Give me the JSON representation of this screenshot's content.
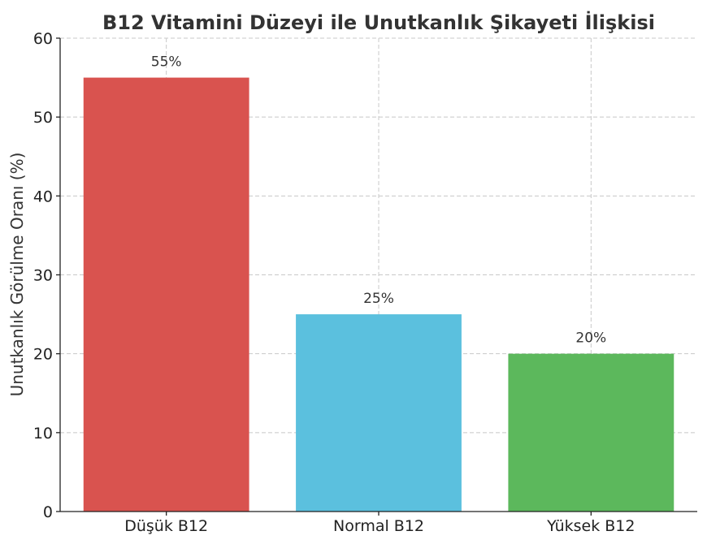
{
  "chart_data": {
    "type": "bar",
    "title": "B12 Vitamini Düzeyi ile Unutkanlık Şikayeti İlişkisi",
    "xlabel": "",
    "ylabel": "Unutkanlık Görülme Oranı (%)",
    "categories": [
      "Düşük B12",
      "Normal B12",
      "Yüksek B12"
    ],
    "values": [
      55,
      25,
      20
    ],
    "value_labels": [
      "55%",
      "25%",
      "20%"
    ],
    "colors": [
      "#d9534f",
      "#5bc0de",
      "#5cb85c"
    ],
    "ylim": [
      0,
      60
    ],
    "yticks": [
      0,
      10,
      20,
      30,
      40,
      50,
      60
    ],
    "grid": true
  }
}
